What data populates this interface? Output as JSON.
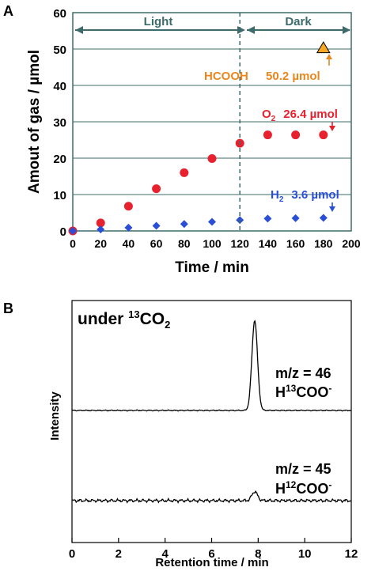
{
  "panel_a": {
    "letter": "A",
    "phase_light": "Light",
    "phase_dark": "Dark",
    "hcooh": {
      "name": "HCOOH",
      "value": "50.2 µmol"
    },
    "o2": {
      "base": "O",
      "sub": "2",
      "value": "26.4 µmol"
    },
    "h2": {
      "base": "H",
      "sub": "2",
      "value": "3.6 µmol"
    }
  },
  "panel_b": {
    "letter": "B",
    "condition": {
      "pre": "under ",
      "sup": "13",
      "mid": "CO",
      "sub": "2"
    },
    "trace46": {
      "mz": "m/z = 46",
      "ion_pre": "H",
      "ion_sup": "13",
      "ion_post": "COO",
      "ion_charge": "-"
    },
    "trace45": {
      "mz": "m/z = 45",
      "ion_pre": "H",
      "ion_sup": "12",
      "ion_post": "COO",
      "ion_charge": "-"
    }
  },
  "chart_data": [
    {
      "type": "scatter",
      "title": "",
      "xlabel": "Time / min",
      "ylabel": "Amout of gas / µmol",
      "xlim": [
        0,
        200
      ],
      "ylim": [
        0,
        60
      ],
      "xticks": [
        0,
        20,
        40,
        60,
        80,
        100,
        120,
        140,
        160,
        180,
        200
      ],
      "yticks": [
        0,
        10,
        20,
        30,
        40,
        50,
        60
      ],
      "grid": "horizontal",
      "divider_x": 120,
      "colors": {
        "O2": "#e8212e",
        "H2": "#2a4fd6",
        "HCOOH": "#f5a623",
        "label_hcooh": "#e8871e",
        "frame": "#3d6b6b"
      },
      "series": [
        {
          "name": "O2",
          "marker": "circle",
          "x": [
            0,
            20,
            40,
            60,
            80,
            100,
            120,
            140,
            160,
            180
          ],
          "y": [
            0,
            2.2,
            6.8,
            11.6,
            16.0,
            19.9,
            24.1,
            26.4,
            26.4,
            26.4
          ]
        },
        {
          "name": "H2",
          "marker": "diamond",
          "x": [
            0,
            20,
            40,
            60,
            80,
            100,
            120,
            140,
            160,
            180
          ],
          "y": [
            0,
            0.4,
            0.9,
            1.4,
            1.9,
            2.5,
            3.0,
            3.4,
            3.5,
            3.6
          ]
        },
        {
          "name": "HCOOH",
          "marker": "triangle",
          "x": [
            180
          ],
          "y": [
            50.2
          ]
        }
      ]
    },
    {
      "type": "line",
      "title": "",
      "xlabel": "Retention time / min",
      "ylabel": "Intensity",
      "xlim": [
        0,
        12
      ],
      "xticks": [
        0,
        2,
        4,
        6,
        8,
        10,
        12
      ],
      "series": [
        {
          "name": "m/z = 46",
          "baseline": 0,
          "peak_center": 7.85,
          "peak_height": 1.0,
          "peak_width": 0.12
        },
        {
          "name": "m/z = 45",
          "baseline": 0,
          "peak_center": 7.85,
          "peak_height": 0.1,
          "peak_width": 0.12
        }
      ]
    }
  ]
}
